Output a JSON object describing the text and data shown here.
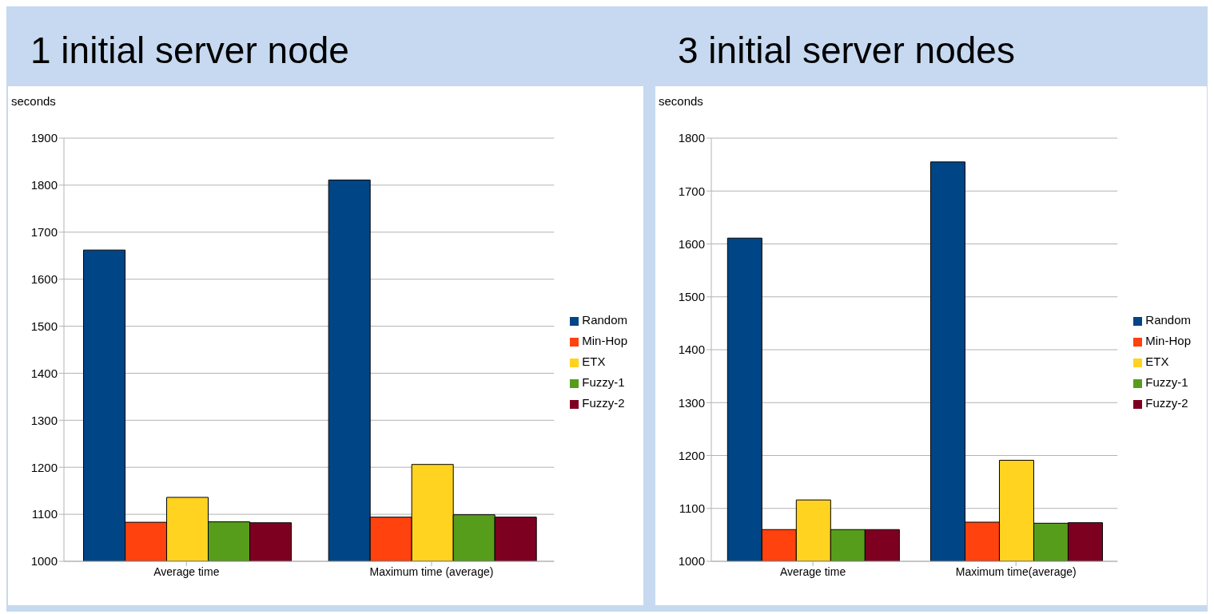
{
  "chart_data": [
    {
      "type": "bar",
      "title": "1 initial server node",
      "ylabel": "seconds",
      "categories": [
        "Average time",
        "Maximum time (average)"
      ],
      "series": [
        {
          "name": "Random",
          "color": "#004586",
          "values": [
            1662,
            1811
          ]
        },
        {
          "name": "Min-Hop",
          "color": "#ff420e",
          "values": [
            1083,
            1094
          ]
        },
        {
          "name": "ETX",
          "color": "#ffd320",
          "values": [
            1136,
            1206
          ]
        },
        {
          "name": "Fuzzy-1",
          "color": "#579d1c",
          "values": [
            1084,
            1099
          ]
        },
        {
          "name": "Fuzzy-2",
          "color": "#7e0021",
          "values": [
            1082,
            1094
          ]
        }
      ],
      "ylim": [
        1000,
        1900
      ],
      "yticks": [
        1000,
        1100,
        1200,
        1300,
        1400,
        1500,
        1600,
        1700,
        1800,
        1900
      ],
      "grid": "y",
      "legend": "right"
    },
    {
      "type": "bar",
      "title": "3 initial server nodes",
      "ylabel": "seconds",
      "categories": [
        "Average time",
        "Maximum time(average)"
      ],
      "series": [
        {
          "name": "Random",
          "color": "#004586",
          "values": [
            1611,
            1755
          ]
        },
        {
          "name": "Min-Hop",
          "color": "#ff420e",
          "values": [
            1060,
            1074
          ]
        },
        {
          "name": "ETX",
          "color": "#ffd320",
          "values": [
            1116,
            1191
          ]
        },
        {
          "name": "Fuzzy-1",
          "color": "#579d1c",
          "values": [
            1060,
            1072
          ]
        },
        {
          "name": "Fuzzy-2",
          "color": "#7e0021",
          "values": [
            1060,
            1073
          ]
        }
      ],
      "ylim": [
        1000,
        1800
      ],
      "yticks": [
        1000,
        1100,
        1200,
        1300,
        1400,
        1500,
        1600,
        1700,
        1800
      ],
      "grid": "y",
      "legend": "right"
    }
  ]
}
